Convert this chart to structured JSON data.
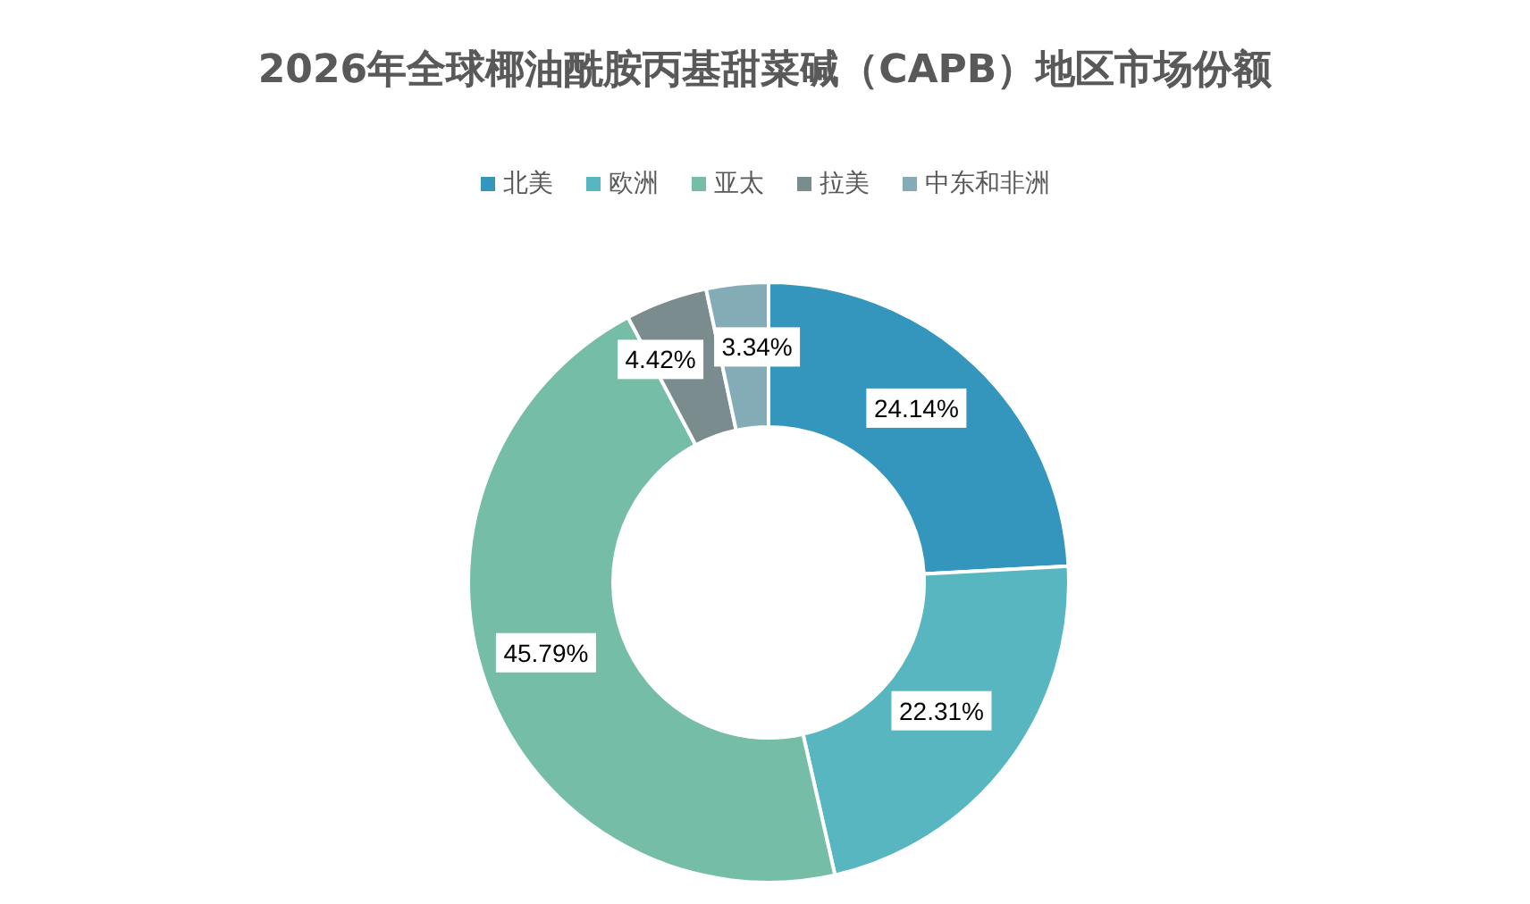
{
  "chart_data": {
    "type": "donut",
    "title": "2026年全球椰油酰胺丙基甜菜碱（CAPB）地区市场份额",
    "categories": [
      "北美",
      "欧洲",
      "亚太",
      "拉美",
      "中东和非洲"
    ],
    "values": [
      24.14,
      22.31,
      45.79,
      4.42,
      3.34
    ],
    "colors": [
      "#3496bc",
      "#58b6c0",
      "#75bda7",
      "#7a8c8e",
      "#84acb6"
    ],
    "value_labels": [
      "24.14%",
      "22.31%",
      "45.79%",
      "4.42%",
      "3.34%"
    ],
    "legend": "top"
  }
}
